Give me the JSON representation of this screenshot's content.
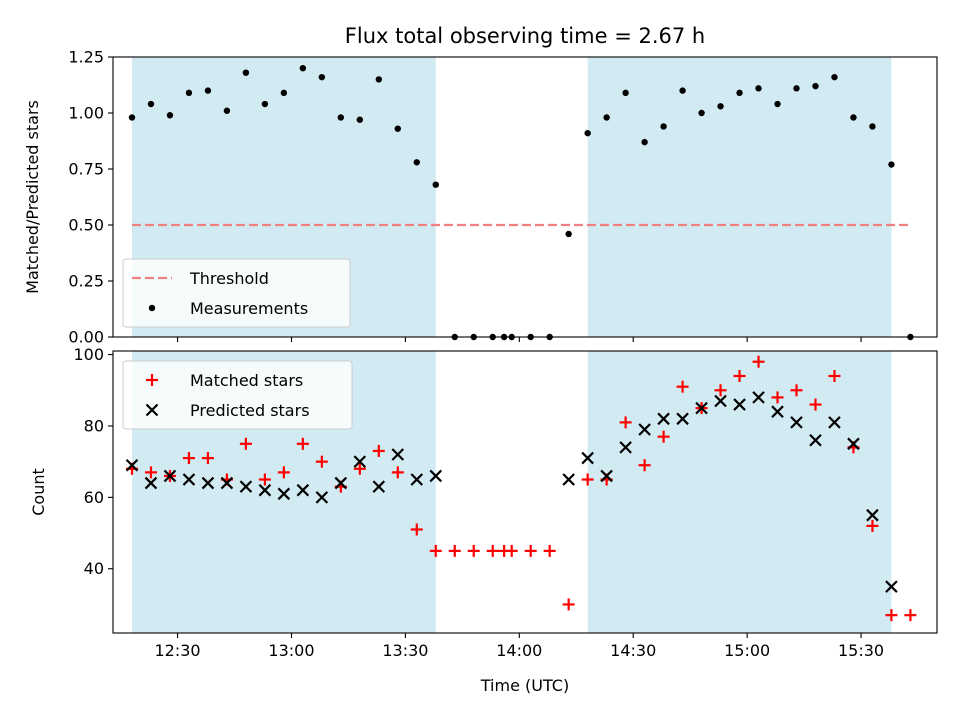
{
  "chart_data": {
    "title": "Flux total observing time = 2.67 h",
    "xlabel": "Time (UTC)",
    "x_tick_labels": [
      "12:30",
      "13:00",
      "13:30",
      "14:00",
      "14:30",
      "15:00",
      "15:30"
    ],
    "x_tick_values": [
      "12:30",
      "13:00",
      "13:30",
      "14:00",
      "14:30",
      "15:00",
      "15:30"
    ],
    "xlim": [
      "12:13",
      "15:50"
    ],
    "shaded_intervals": [
      [
        "12:18",
        "13:38"
      ],
      [
        "14:18",
        "15:38"
      ]
    ],
    "shade_color": "#add8e6",
    "panels": [
      {
        "type": "scatter",
        "ylabel": "Matched/Predicted stars",
        "ylim": [
          0,
          1.25
        ],
        "y_ticks": [
          "0.00",
          "0.25",
          "0.50",
          "0.75",
          "1.00",
          "1.25"
        ],
        "legend_position": "lower-left",
        "threshold": {
          "name": "Threshold",
          "value": 0.5,
          "x_range": [
            "12:18",
            "15:43"
          ],
          "color": "#f08080"
        },
        "series": [
          {
            "name": "Measurements",
            "marker": "dot",
            "color": "#000000",
            "x": [
              "12:18",
              "12:23",
              "12:28",
              "12:33",
              "12:38",
              "12:43",
              "12:48",
              "12:53",
              "12:58",
              "13:03",
              "13:08",
              "13:13",
              "13:18",
              "13:23",
              "13:28",
              "13:33",
              "13:38",
              "13:43",
              "13:48",
              "13:53",
              "13:56",
              "13:58",
              "14:03",
              "14:08",
              "14:13",
              "14:18",
              "14:23",
              "14:28",
              "14:33",
              "14:38",
              "14:43",
              "14:48",
              "14:53",
              "14:58",
              "15:03",
              "15:08",
              "15:13",
              "15:18",
              "15:23",
              "15:28",
              "15:33",
              "15:38",
              "15:43"
            ],
            "y": [
              0.98,
              1.04,
              0.99,
              1.09,
              1.1,
              1.01,
              1.18,
              1.04,
              1.09,
              1.2,
              1.16,
              0.98,
              0.97,
              1.15,
              0.93,
              0.78,
              0.68,
              0.0,
              0.0,
              0.0,
              0.0,
              0.0,
              0.0,
              0.0,
              0.46,
              0.91,
              0.98,
              1.09,
              0.87,
              0.94,
              1.1,
              1.0,
              1.03,
              1.09,
              1.11,
              1.04,
              1.11,
              1.12,
              1.16,
              0.98,
              0.94,
              0.77,
              0.0
            ]
          }
        ]
      },
      {
        "type": "scatter",
        "ylabel": "Count",
        "ylim": [
          22,
          101
        ],
        "y_ticks": [
          "40",
          "60",
          "80",
          "100"
        ],
        "legend_position": "upper-left",
        "series": [
          {
            "name": "Matched stars",
            "marker": "plus",
            "color": "#ff0000",
            "x": [
              "12:18",
              "12:23",
              "12:28",
              "12:33",
              "12:38",
              "12:43",
              "12:48",
              "12:53",
              "12:58",
              "13:03",
              "13:08",
              "13:13",
              "13:18",
              "13:23",
              "13:28",
              "13:33",
              "13:38",
              "13:43",
              "13:48",
              "13:53",
              "13:56",
              "13:58",
              "14:03",
              "14:08",
              "14:13",
              "14:18",
              "14:23",
              "14:28",
              "14:33",
              "14:38",
              "14:43",
              "14:48",
              "14:53",
              "14:58",
              "15:03",
              "15:08",
              "15:13",
              "15:18",
              "15:23",
              "15:28",
              "15:33",
              "15:38",
              "15:43"
            ],
            "y": [
              68,
              67,
              66,
              71,
              71,
              65,
              75,
              65,
              67,
              75,
              70,
              63,
              68,
              73,
              67,
              51,
              45,
              45,
              45,
              45,
              45,
              45,
              45,
              45,
              30,
              65,
              65,
              81,
              69,
              77,
              91,
              85,
              90,
              94,
              98,
              88,
              90,
              86,
              94,
              74,
              52,
              27,
              27
            ]
          },
          {
            "name": "Predicted stars",
            "marker": "x",
            "color": "#000000",
            "x": [
              "12:18",
              "12:23",
              "12:28",
              "12:33",
              "12:38",
              "12:43",
              "12:48",
              "12:53",
              "12:58",
              "13:03",
              "13:08",
              "13:13",
              "13:18",
              "13:23",
              "13:28",
              "13:33",
              "13:38",
              "14:13",
              "14:18",
              "14:23",
              "14:28",
              "14:33",
              "14:38",
              "14:43",
              "14:48",
              "14:53",
              "14:58",
              "15:03",
              "15:08",
              "15:13",
              "15:18",
              "15:23",
              "15:28",
              "15:33",
              "15:38"
            ],
            "y": [
              69,
              64,
              66,
              65,
              64,
              64,
              63,
              62,
              61,
              62,
              60,
              64,
              70,
              63,
              72,
              65,
              66,
              65,
              71,
              66,
              74,
              79,
              82,
              82,
              85,
              87,
              86,
              88,
              84,
              81,
              76,
              81,
              75,
              55,
              35
            ]
          }
        ]
      }
    ]
  }
}
